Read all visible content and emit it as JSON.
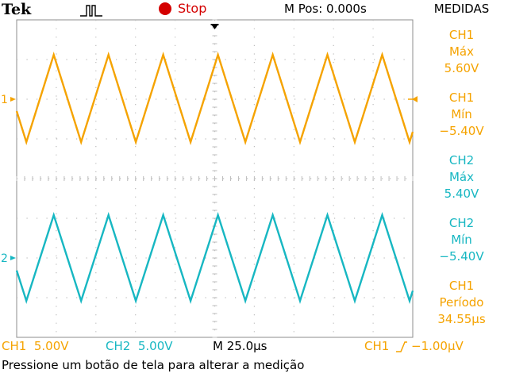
{
  "header": {
    "brand": "Tek",
    "trigger_status_icon": "trigger-pulse-icon",
    "run_state": "Stop",
    "horizontal_position": "M Pos: 0.000s"
  },
  "colors": {
    "ch1": "#f5a300",
    "ch2": "#17b7c2",
    "stop": "#d40000",
    "grid": "#bdbdbd"
  },
  "side_menu": {
    "title": "MEDIDAS",
    "measurements": [
      {
        "channel": "CH1",
        "type": "Máx",
        "value": "5.60V",
        "color": "ch1"
      },
      {
        "channel": "CH1",
        "type": "Mín",
        "value": "−5.40V",
        "color": "ch1"
      },
      {
        "channel": "CH2",
        "type": "Máx",
        "value": "5.40V",
        "color": "ch2"
      },
      {
        "channel": "CH2",
        "type": "Mín",
        "value": "−5.40V",
        "color": "ch2"
      },
      {
        "channel": "CH1",
        "type": "Período",
        "value": "34.55µs",
        "color": "ch1"
      }
    ]
  },
  "channel_markers": {
    "ch1": "1",
    "ch2": "2"
  },
  "bottom_bar": {
    "ch1_scale": "CH1  5.00V",
    "ch2_scale": "CH2  5.00V",
    "timebase": "M 25.0µs",
    "trigger_source": "CH1",
    "trigger_level": "−1.00µV"
  },
  "status_message": "Pressione um botão de tela para alterar a medição",
  "chart_data": {
    "type": "line",
    "title": "",
    "xlabel": "",
    "ylabel": "",
    "grid": true,
    "divisions": {
      "x": 10,
      "y": 8
    },
    "time_per_div_us": 25.0,
    "volts_per_div": 5.0,
    "xlim_us": [
      -125,
      125
    ],
    "series": [
      {
        "name": "CH1",
        "color": "ch1",
        "waveform": "triangle",
        "max_v": 5.6,
        "min_v": -5.4,
        "period_us": 34.55,
        "first_peak_us": -101.6,
        "offset_div": 2
      },
      {
        "name": "CH2",
        "color": "ch2",
        "waveform": "triangle",
        "max_v": 5.4,
        "min_v": -5.4,
        "period_us": 34.55,
        "first_peak_us": -101.6,
        "offset_div": -2
      }
    ]
  }
}
